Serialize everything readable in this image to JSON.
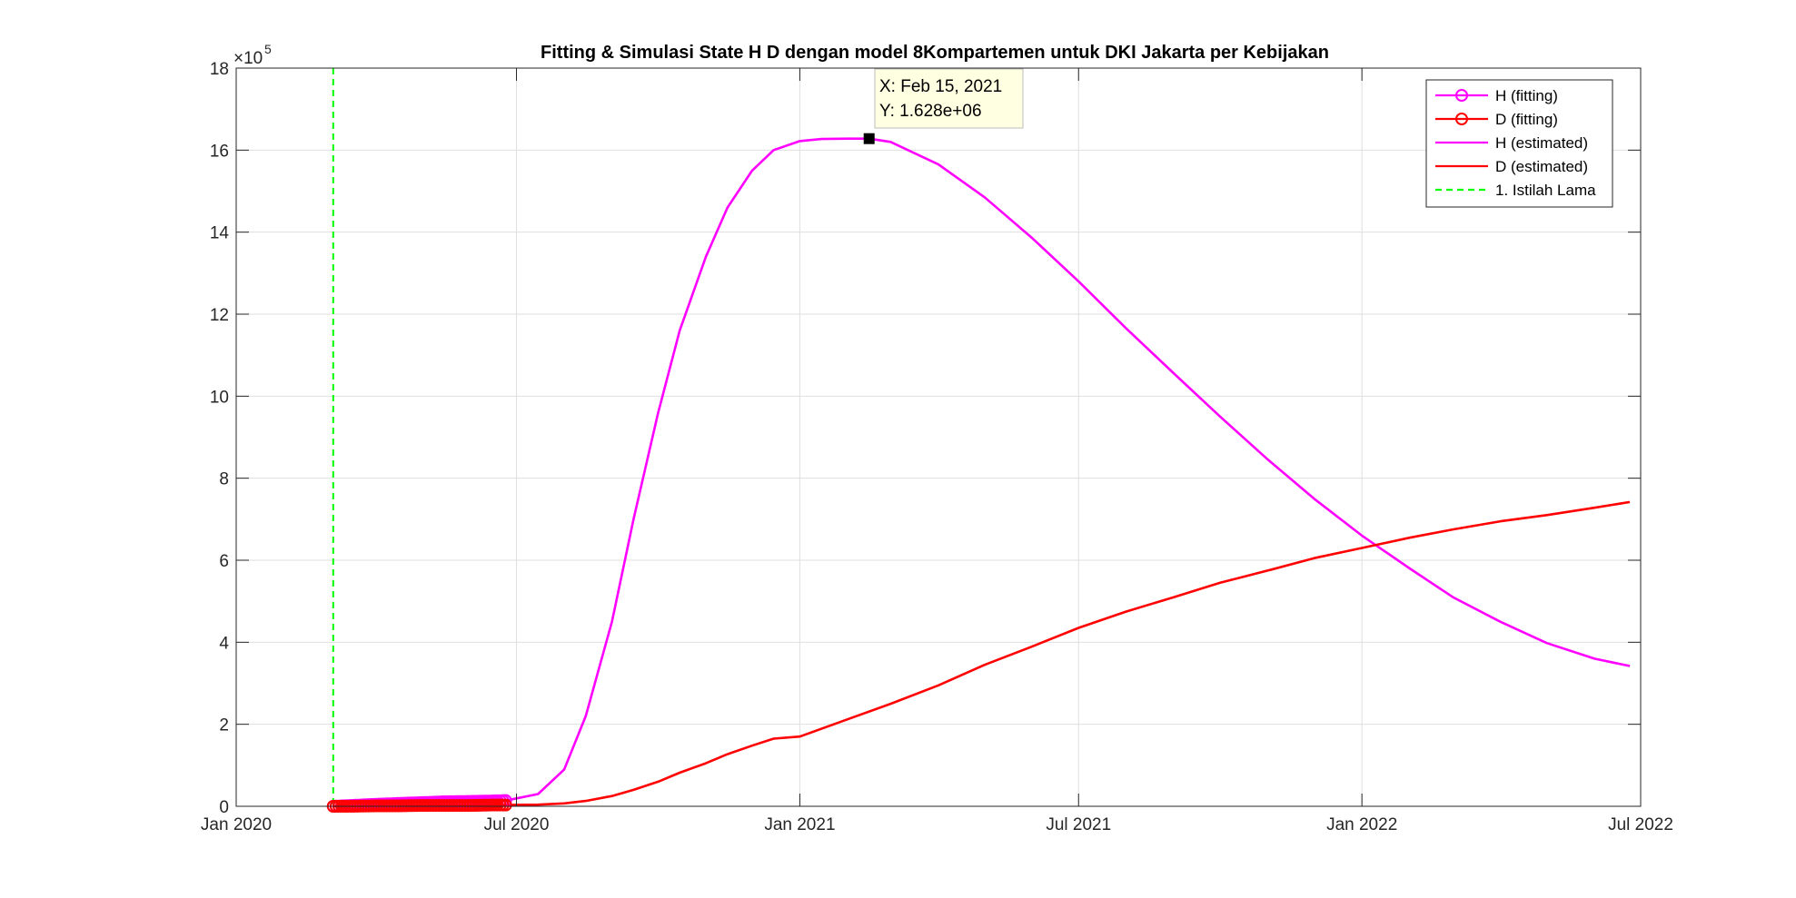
{
  "chart_data": {
    "type": "line",
    "title": "Fitting & Simulasi State  H D dengan model 8Kompartemen untuk DKI Jakarta per Kebijakan",
    "xlabel": "",
    "ylabel": "",
    "x_axis": {
      "type": "date",
      "range": [
        "2020-01-01",
        "2022-07-01"
      ],
      "ticks": [
        "2020-01-01",
        "2020-07-01",
        "2021-01-01",
        "2021-07-01",
        "2022-01-01",
        "2022-07-01"
      ],
      "tick_labels": [
        "Jan 2020",
        "Jul 2020",
        "Jan 2021",
        "Jul 2021",
        "Jan 2022",
        "Jul 2022"
      ]
    },
    "y_axis": {
      "range": [
        0,
        18
      ],
      "ticks": [
        0,
        2,
        4,
        6,
        8,
        10,
        12,
        14,
        16,
        18
      ],
      "tick_labels": [
        "0",
        "2",
        "4",
        "6",
        "8",
        "10",
        "12",
        "14",
        "16",
        "18"
      ],
      "exponent_label": "×10",
      "exponent_power": "5"
    },
    "grid": true,
    "legend_location": "top-right",
    "series": [
      {
        "name": "H (fitting)",
        "style": "line-circle",
        "color": "#ff00ff",
        "x": [
          "2020-03-04",
          "2020-03-15",
          "2020-04-01",
          "2020-04-15",
          "2020-05-01",
          "2020-05-15",
          "2020-06-01",
          "2020-06-15",
          "2020-06-24"
        ],
        "y": [
          0.0,
          0.02,
          0.05,
          0.07,
          0.09,
          0.11,
          0.12,
          0.13,
          0.14
        ]
      },
      {
        "name": "D (fitting)",
        "style": "line-circle",
        "color": "#ff0000",
        "x": [
          "2020-03-04",
          "2020-03-15",
          "2020-04-01",
          "2020-04-15",
          "2020-05-01",
          "2020-05-15",
          "2020-06-01",
          "2020-06-15",
          "2020-06-24"
        ],
        "y": [
          0.0,
          0.0,
          0.01,
          0.01,
          0.02,
          0.02,
          0.02,
          0.03,
          0.03
        ]
      },
      {
        "name": "H (estimated)",
        "style": "line",
        "color": "#ff00ff",
        "x": [
          "2020-06-24",
          "2020-07-15",
          "2020-08-01",
          "2020-08-15",
          "2020-09-01",
          "2020-09-15",
          "2020-10-01",
          "2020-10-15",
          "2020-11-01",
          "2020-11-15",
          "2020-12-01",
          "2020-12-15",
          "2021-01-01",
          "2021-01-15",
          "2021-02-01",
          "2021-02-15",
          "2021-03-01",
          "2021-04-01",
          "2021-05-01",
          "2021-06-01",
          "2021-07-01",
          "2021-08-01",
          "2021-09-01",
          "2021-10-01",
          "2021-11-01",
          "2021-12-01",
          "2022-01-01",
          "2022-02-01",
          "2022-03-01",
          "2022-04-01",
          "2022-05-01",
          "2022-06-01",
          "2022-06-24"
        ],
        "y": [
          0.14,
          0.3,
          0.9,
          2.2,
          4.5,
          7.0,
          9.6,
          11.6,
          13.4,
          14.6,
          15.5,
          16.0,
          16.22,
          16.27,
          16.28,
          16.28,
          16.2,
          15.65,
          14.85,
          13.85,
          12.8,
          11.65,
          10.55,
          9.5,
          8.45,
          7.5,
          6.6,
          5.8,
          5.1,
          4.5,
          3.98,
          3.6,
          3.42
        ]
      },
      {
        "name": "D (estimated)",
        "style": "line",
        "color": "#ff0000",
        "x": [
          "2020-06-24",
          "2020-07-15",
          "2020-08-01",
          "2020-08-15",
          "2020-09-01",
          "2020-09-15",
          "2020-10-01",
          "2020-10-15",
          "2020-11-01",
          "2020-11-15",
          "2020-12-01",
          "2020-12-15",
          "2021-01-01",
          "2021-02-01",
          "2021-03-01",
          "2021-04-01",
          "2021-05-01",
          "2021-06-01",
          "2021-07-01",
          "2021-08-01",
          "2021-09-01",
          "2021-10-01",
          "2021-11-01",
          "2021-12-01",
          "2022-01-01",
          "2022-02-01",
          "2022-03-01",
          "2022-04-01",
          "2022-05-01",
          "2022-06-01",
          "2022-06-24"
        ],
        "y": [
          0.03,
          0.04,
          0.07,
          0.13,
          0.25,
          0.4,
          0.6,
          0.82,
          1.05,
          1.27,
          1.48,
          1.65,
          1.7,
          2.12,
          2.5,
          2.95,
          3.45,
          3.9,
          4.35,
          4.75,
          5.1,
          5.45,
          5.75,
          6.05,
          6.3,
          6.55,
          6.75,
          6.95,
          7.1,
          7.28,
          7.42
        ]
      },
      {
        "name": "1. Istilah Lama",
        "style": "dashed-vline",
        "color": "#00ff00",
        "x": "2020-03-04"
      }
    ],
    "datatip": {
      "x": "2021-02-15",
      "y": 16.28,
      "x_text": "X: Feb 15, 2021",
      "y_text": "Y: 1.628e+06"
    }
  }
}
